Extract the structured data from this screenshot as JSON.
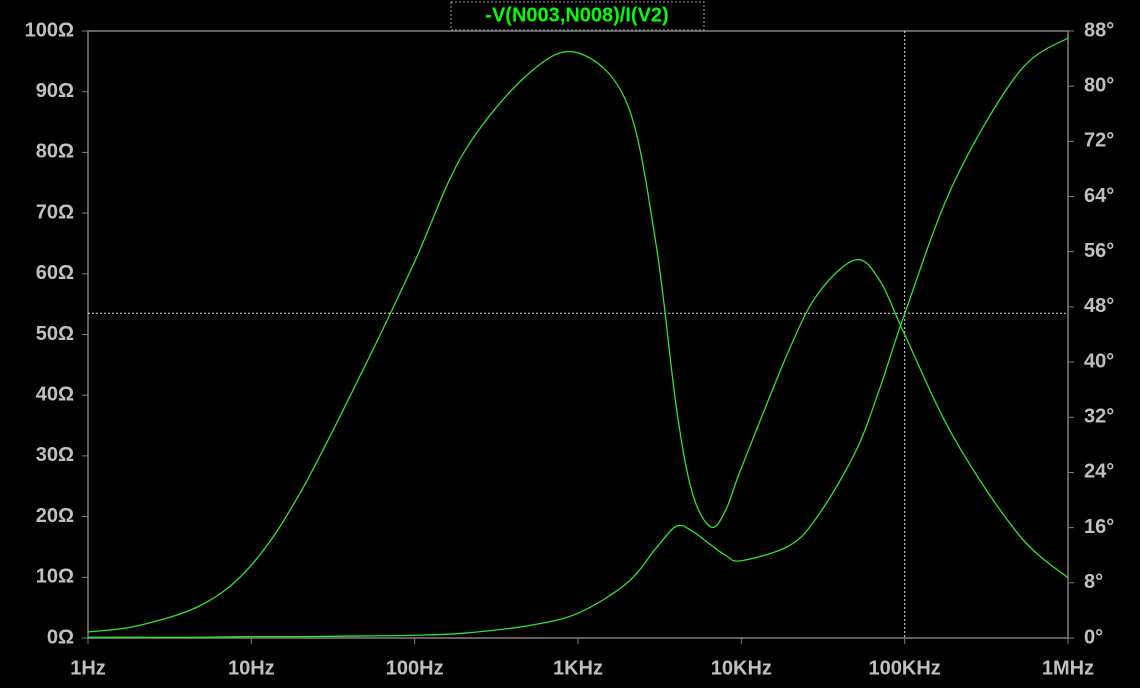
{
  "chart_data": {
    "type": "line",
    "title": "-V(N003,N008)/I(V2)",
    "xscale": "log",
    "x": [
      1,
      2,
      5,
      10,
      20,
      50,
      100,
      200,
      500,
      1000,
      2000,
      3000,
      4000,
      5000,
      6500,
      8000,
      10000,
      20000,
      30000,
      50000,
      70000,
      100000,
      200000,
      500000,
      1000000
    ],
    "series": [
      {
        "color": "#33e033",
        "values": [
          1,
          2,
          5.5,
          12,
          24,
          45,
          62,
          80,
          93,
          96.4,
          88,
          65,
          38,
          24,
          18.3,
          21,
          28,
          48,
          57,
          62.3,
          59,
          50,
          33,
          17,
          9.9
        ]
      },
      {
        "color": "#33e033",
        "axis": "y2",
        "values": [
          0.1,
          0.1,
          0.1,
          0.2,
          0.2,
          0.3,
          0.4,
          0.7,
          1.8,
          3.6,
          8,
          13,
          16.2,
          15.5,
          13.5,
          12,
          11.2,
          13.5,
          18,
          27,
          36,
          47,
          66,
          82,
          87
        ]
      }
    ],
    "xlim": [
      1,
      1000000
    ],
    "xticks": [
      {
        "value": 1,
        "label": "1Hz"
      },
      {
        "value": 10,
        "label": "10Hz"
      },
      {
        "value": 100,
        "label": "100Hz"
      },
      {
        "value": 1000,
        "label": "1KHz"
      },
      {
        "value": 10000,
        "label": "10KHz"
      },
      {
        "value": 100000,
        "label": "100KHz"
      },
      {
        "value": 1000000,
        "label": "1MHz"
      }
    ],
    "ylim": [
      0,
      100
    ],
    "yticks": [
      {
        "value": 0,
        "label": "0Ω"
      },
      {
        "value": 10,
        "label": "10Ω"
      },
      {
        "value": 20,
        "label": "20Ω"
      },
      {
        "value": 30,
        "label": "30Ω"
      },
      {
        "value": 40,
        "label": "40Ω"
      },
      {
        "value": 50,
        "label": "50Ω"
      },
      {
        "value": 60,
        "label": "60Ω"
      },
      {
        "value": 70,
        "label": "70Ω"
      },
      {
        "value": 80,
        "label": "80Ω"
      },
      {
        "value": 90,
        "label": "90Ω"
      },
      {
        "value": 100,
        "label": "100Ω"
      }
    ],
    "y2lim": [
      0,
      88
    ],
    "y2ticks": [
      {
        "value": 0,
        "label": "0°"
      },
      {
        "value": 8,
        "label": "8°"
      },
      {
        "value": 16,
        "label": "16°"
      },
      {
        "value": 24,
        "label": "24°"
      },
      {
        "value": 32,
        "label": "32°"
      },
      {
        "value": 40,
        "label": "40°"
      },
      {
        "value": 48,
        "label": "48°"
      },
      {
        "value": 56,
        "label": "56°"
      },
      {
        "value": 64,
        "label": "64°"
      },
      {
        "value": 72,
        "label": "72°"
      },
      {
        "value": 80,
        "label": "80°"
      },
      {
        "value": 88,
        "label": "88°"
      }
    ],
    "cursor": {
      "x": 100000,
      "y": 53.5
    }
  }
}
